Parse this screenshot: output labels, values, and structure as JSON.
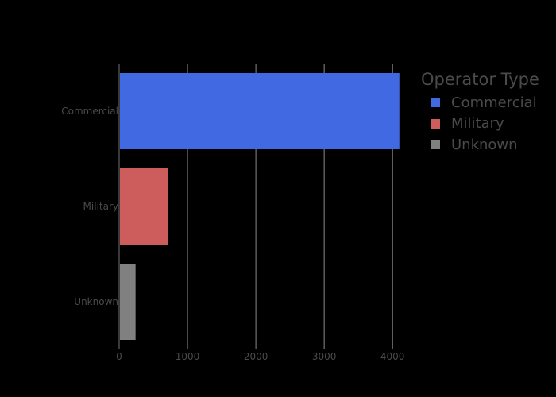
{
  "chart_data": {
    "type": "bar",
    "orientation": "horizontal",
    "categories": [
      "Commercial",
      "Military",
      "Unknown"
    ],
    "values": [
      4100,
      720,
      240
    ],
    "colors": [
      "#4169E1",
      "#CD5C5C",
      "#808080"
    ],
    "xlim": [
      0,
      4300
    ],
    "x_ticks": [
      0,
      1000,
      2000,
      3000,
      4000
    ],
    "grid": true,
    "legend": {
      "title": "Operator Type",
      "placement": "right",
      "entries": [
        "Commercial",
        "Military",
        "Unknown"
      ]
    }
  }
}
